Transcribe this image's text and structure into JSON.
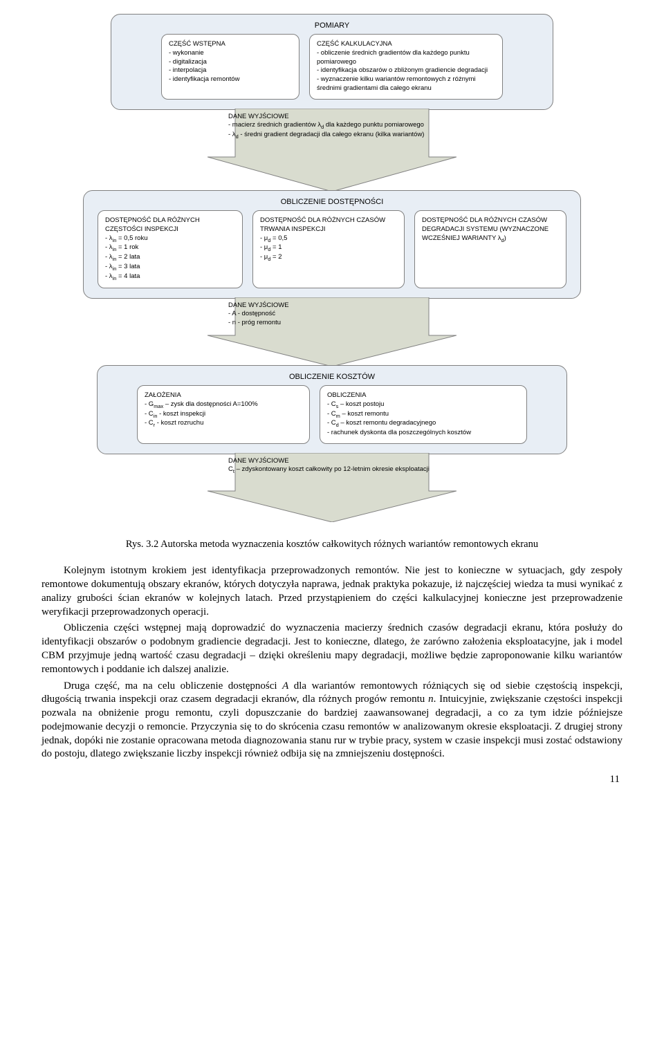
{
  "colors": {
    "panel_bg": "#e8eef5",
    "panel_border": "#808080",
    "inner_bg": "#ffffff",
    "arrow_fill": "#d9dccf",
    "arrow_stroke": "#808080",
    "page_bg": "#ffffff",
    "text": "#000000"
  },
  "diagram": {
    "panel1": {
      "title": "POMIARY",
      "left": {
        "heading": "CZĘŚĆ WSTĘPNA",
        "items": [
          "- wykonanie",
          "- digitalizacja",
          "- interpolacja",
          "- identyfikacja remontów"
        ]
      },
      "right": {
        "heading": "CZĘŚĆ KALKULACYJNA",
        "items": [
          "- obliczenie średnich gradientów dla każdego punktu pomiarowego",
          "- identyfikacja obszarów o zbliżonym gradiencie degradacji",
          "- wyznaczenie kilku wariantów remontowych z różnymi średnimi gradientami dla całego ekranu"
        ]
      }
    },
    "arrow1": {
      "heading": "DANE WYJŚCIOWE",
      "items": [
        "-  macierz średnich gradientów λ<sub>d</sub> dla każdego punktu pomiarowego",
        "- λ<sub>d</sub> - średni gradient degradacji dla całego ekranu (kilka wariantów)"
      ]
    },
    "panel2": {
      "title": "OBLICZENIE DOSTĘPNOŚCI",
      "box1": {
        "heading": "DOSTĘPNOŚĆ DLA RÓŻNYCH CZĘSTOŚCI INSPEKCJI",
        "items": [
          "- λ<sub>in</sub> = 0,5 roku",
          "- λ<sub>in</sub> = 1 rok",
          "- λ<sub>in</sub> = 2 lata",
          "- λ<sub>in</sub> = 3 lata",
          "- λ<sub>in</sub> = 4 lata"
        ]
      },
      "box2": {
        "heading": "DOSTĘPNOŚĆ DLA RÓŻNYCH CZASÓW TRWANIA INSPEKCJI",
        "items": [
          "- μ<sub>d</sub> = 0,5",
          "- μ<sub>d</sub> = 1",
          "- μ<sub>d</sub> = 2"
        ]
      },
      "box3": {
        "heading": "DOSTĘPNOŚĆ DLA RÓŻNYCH CZASÓW DEGRADACJI SYSTEMU (WYZNACZONE WCZEŚNIEJ WARIANTY λ<sub>d</sub>)",
        "items": []
      }
    },
    "arrow2": {
      "heading": "DANE WYJŚCIOWE",
      "items": [
        "- A - dostępność",
        "- n - próg remontu"
      ]
    },
    "panel3": {
      "title": "OBLICZENIE KOSZTÓW",
      "left": {
        "heading": "ZAŁOŻENIA",
        "items": [
          "- G<sub>max</sub> – zysk dla dostępności A=100%",
          "- C<sub>in</sub> - koszt inspekcji",
          "- C<sub>r</sub> - koszt rozruchu"
        ]
      },
      "right": {
        "heading": "OBLICZENIA",
        "items": [
          "- C<sub>s</sub> – koszt postoju",
          "- C<sub>m</sub> – koszt remontu",
          "- C<sub>d</sub> – koszt remontu degradacyjnego",
          "- rachunek dyskonta dla poszczególnych kosztów"
        ]
      }
    },
    "arrow3": {
      "heading": "DANE WYJŚCIOWE",
      "items": [
        "C<sub>t</sub> – zdyskontowany koszt całkowity po 12-letnim okresie eksploatacji"
      ]
    }
  },
  "caption": "Rys. 3.2 Autorska metoda wyznaczenia kosztów całkowitych różnych wariantów remontowych ekranu",
  "para1": "Kolejnym istotnym krokiem jest identyfikacja przeprowadzonych remontów. Nie jest to konieczne w sytuacjach, gdy zespoły remontowe dokumentują obszary ekranów, których dotyczyła naprawa, jednak praktyka pokazuje, iż najczęściej wiedza ta musi wynikać z analizy grubości ścian ekranów w kolejnych latach. Przed przystąpieniem do części kalkulacyjnej konieczne jest przeprowadzenie weryfikacji przeprowadzonych operacji.",
  "para2": "Obliczenia części wstępnej mają doprowadzić do wyznaczenia macierzy średnich czasów degradacji ekranu, która posłuży do identyfikacji obszarów o podobnym gradiencie degradacji. Jest to konieczne, dlatego, że zarówno założenia eksploatacyjne, jak i model CBM przyjmuje jedną wartość czasu degradacji – dzięki określeniu mapy degradacji, możliwe będzie zaproponowanie kilku wariantów remontowych i poddanie ich dalszej analizie.",
  "para3_html": "Druga część, ma na celu obliczenie dostępności <span class=\"it\">A</span> dla wariantów remontowych różniących się od siebie częstością inspekcji, długością trwania inspekcji oraz czasem degradacji ekranów, dla różnych progów remontu <span class=\"it\">n</span>. Intuicyjnie, zwiększanie częstości inspekcji pozwala na obniżenie progu remontu, czyli dopuszczanie do bardziej zaawansowanej degradacji, a co za tym idzie późniejsze podejmowanie decyzji o remoncie. Przyczynia się to do skrócenia czasu remontów w analizowanym okresie eksploatacji. Z drugiej strony jednak, dopóki nie zostanie opracowana metoda diagnozowania stanu rur w trybie pracy, system w czasie inspekcji musi zostać odstawiony do postoju, dlatego zwiększanie liczby inspekcji również odbija się na zmniejszeniu dostępności.",
  "page_number": "11"
}
